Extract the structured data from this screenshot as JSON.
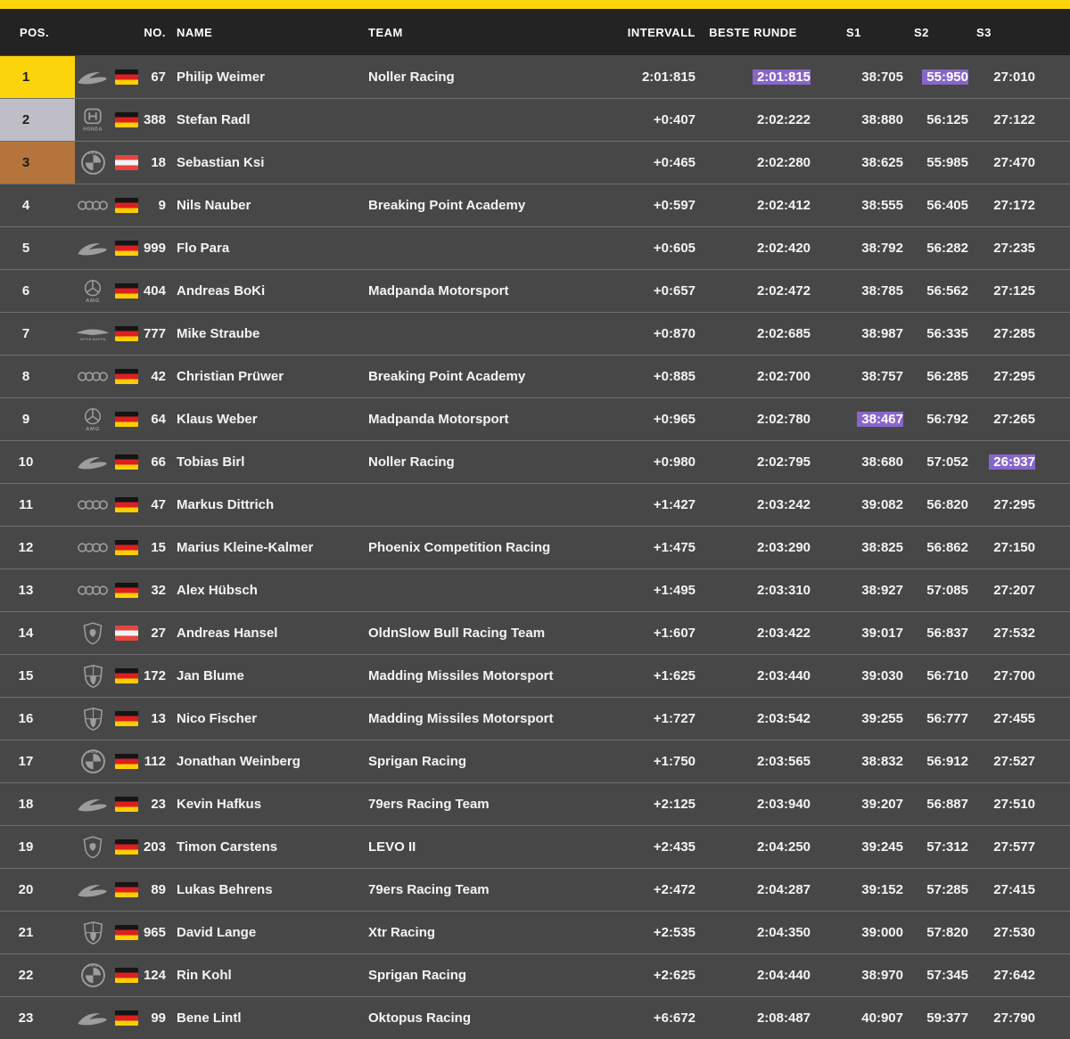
{
  "colors": {
    "accent": "#FBD40B",
    "gold": "#FBD40B",
    "silver": "#BFBEC6",
    "bronze": "#B5743B",
    "highlight": "#8766CB",
    "row_background": "#474747",
    "header_background": "#232323"
  },
  "header": {
    "pos": "POS.",
    "no": "NO.",
    "name": "NAME",
    "team": "TEAM",
    "intervall": "INTERVALL",
    "beste": "BESTE RUNDE",
    "s1": "S1",
    "s2": "S2",
    "s3": "S3"
  },
  "rows": [
    {
      "pos": "1",
      "medal": "gold",
      "logo": "mclaren",
      "flag": "de",
      "no": "67",
      "name": "Philip Weimer",
      "team": "Noller Racing",
      "intervall": "2:01:815",
      "beste": "2:01:815",
      "s1": "38:705",
      "s2": "55:950",
      "s3": "27:010",
      "hl": [
        "beste",
        "s2"
      ]
    },
    {
      "pos": "2",
      "medal": "silver",
      "logo": "honda",
      "flag": "de",
      "no": "388",
      "name": "Stefan Radl",
      "team": "",
      "intervall": "+0:407",
      "beste": "2:02:222",
      "s1": "38:880",
      "s2": "56:125",
      "s3": "27:122",
      "hl": []
    },
    {
      "pos": "3",
      "medal": "bronze",
      "logo": "bmw",
      "flag": "at",
      "no": "18",
      "name": "Sebastian Ksi",
      "team": "",
      "intervall": "+0:465",
      "beste": "2:02:280",
      "s1": "38:625",
      "s2": "55:985",
      "s3": "27:470",
      "hl": []
    },
    {
      "pos": "4",
      "medal": null,
      "logo": "audi",
      "flag": "de",
      "no": "9",
      "name": "Nils Nauber",
      "team": "Breaking Point Academy",
      "intervall": "+0:597",
      "beste": "2:02:412",
      "s1": "38:555",
      "s2": "56:405",
      "s3": "27:172",
      "hl": []
    },
    {
      "pos": "5",
      "medal": null,
      "logo": "mclaren",
      "flag": "de",
      "no": "999",
      "name": "Flo Para",
      "team": "",
      "intervall": "+0:605",
      "beste": "2:02:420",
      "s1": "38:792",
      "s2": "56:282",
      "s3": "27:235",
      "hl": []
    },
    {
      "pos": "6",
      "medal": null,
      "logo": "amg",
      "flag": "de",
      "no": "404",
      "name": "Andreas BoKi",
      "team": "Madpanda Motorsport",
      "intervall": "+0:657",
      "beste": "2:02:472",
      "s1": "38:785",
      "s2": "56:562",
      "s3": "27:125",
      "hl": []
    },
    {
      "pos": "7",
      "medal": null,
      "logo": "astonmartin",
      "flag": "de",
      "no": "777",
      "name": "Mike Straube",
      "team": "",
      "intervall": "+0:870",
      "beste": "2:02:685",
      "s1": "38:987",
      "s2": "56:335",
      "s3": "27:285",
      "hl": []
    },
    {
      "pos": "8",
      "medal": null,
      "logo": "audi",
      "flag": "de",
      "no": "42",
      "name": "Christian Prüwer",
      "team": "Breaking Point Academy",
      "intervall": "+0:885",
      "beste": "2:02:700",
      "s1": "38:757",
      "s2": "56:285",
      "s3": "27:295",
      "hl": []
    },
    {
      "pos": "9",
      "medal": null,
      "logo": "amg",
      "flag": "de",
      "no": "64",
      "name": "Klaus Weber",
      "team": "Madpanda Motorsport",
      "intervall": "+0:965",
      "beste": "2:02:780",
      "s1": "38:467",
      "s2": "56:792",
      "s3": "27:265",
      "hl": [
        "s1"
      ]
    },
    {
      "pos": "10",
      "medal": null,
      "logo": "mclaren",
      "flag": "de",
      "no": "66",
      "name": "Tobias Birl",
      "team": "Noller Racing",
      "intervall": "+0:980",
      "beste": "2:02:795",
      "s1": "38:680",
      "s2": "57:052",
      "s3": "26:937",
      "hl": [
        "s3"
      ]
    },
    {
      "pos": "11",
      "medal": null,
      "logo": "audi",
      "flag": "de",
      "no": "47",
      "name": "Markus Dittrich",
      "team": "",
      "intervall": "+1:427",
      "beste": "2:03:242",
      "s1": "39:082",
      "s2": "56:820",
      "s3": "27:295",
      "hl": []
    },
    {
      "pos": "12",
      "medal": null,
      "logo": "audi",
      "flag": "de",
      "no": "15",
      "name": "Marius Kleine-Kalmer",
      "team": "Phoenix Competition Racing",
      "intervall": "+1:475",
      "beste": "2:03:290",
      "s1": "38:825",
      "s2": "56:862",
      "s3": "27:150",
      "hl": []
    },
    {
      "pos": "13",
      "medal": null,
      "logo": "audi",
      "flag": "de",
      "no": "32",
      "name": "Alex Hübsch",
      "team": "",
      "intervall": "+1:495",
      "beste": "2:03:310",
      "s1": "38:927",
      "s2": "57:085",
      "s3": "27:207",
      "hl": []
    },
    {
      "pos": "14",
      "medal": null,
      "logo": "lamborghini",
      "flag": "at",
      "no": "27",
      "name": "Andreas Hansel",
      "team": "OldnSlow Bull Racing Team",
      "intervall": "+1:607",
      "beste": "2:03:422",
      "s1": "39:017",
      "s2": "56:837",
      "s3": "27:532",
      "hl": []
    },
    {
      "pos": "15",
      "medal": null,
      "logo": "porsche",
      "flag": "de",
      "no": "172",
      "name": "Jan Blume",
      "team": "Madding Missiles Motorsport",
      "intervall": "+1:625",
      "beste": "2:03:440",
      "s1": "39:030",
      "s2": "56:710",
      "s3": "27:700",
      "hl": []
    },
    {
      "pos": "16",
      "medal": null,
      "logo": "porsche",
      "flag": "de",
      "no": "13",
      "name": "Nico Fischer",
      "team": "Madding Missiles Motorsport",
      "intervall": "+1:727",
      "beste": "2:03:542",
      "s1": "39:255",
      "s2": "56:777",
      "s3": "27:455",
      "hl": []
    },
    {
      "pos": "17",
      "medal": null,
      "logo": "bmw",
      "flag": "de",
      "no": "112",
      "name": "Jonathan Weinberg",
      "team": "Sprigan Racing",
      "intervall": "+1:750",
      "beste": "2:03:565",
      "s1": "38:832",
      "s2": "56:912",
      "s3": "27:527",
      "hl": []
    },
    {
      "pos": "18",
      "medal": null,
      "logo": "mclaren",
      "flag": "de",
      "no": "23",
      "name": "Kevin Hafkus",
      "team": "79ers Racing Team",
      "intervall": "+2:125",
      "beste": "2:03:940",
      "s1": "39:207",
      "s2": "56:887",
      "s3": "27:510",
      "hl": []
    },
    {
      "pos": "19",
      "medal": null,
      "logo": "lamborghini",
      "flag": "de",
      "no": "203",
      "name": "Timon Carstens",
      "team": "LEVO II",
      "intervall": "+2:435",
      "beste": "2:04:250",
      "s1": "39:245",
      "s2": "57:312",
      "s3": "27:577",
      "hl": []
    },
    {
      "pos": "20",
      "medal": null,
      "logo": "mclaren",
      "flag": "de",
      "no": "89",
      "name": "Lukas Behrens",
      "team": "79ers Racing Team",
      "intervall": "+2:472",
      "beste": "2:04:287",
      "s1": "39:152",
      "s2": "57:285",
      "s3": "27:415",
      "hl": []
    },
    {
      "pos": "21",
      "medal": null,
      "logo": "porsche",
      "flag": "de",
      "no": "965",
      "name": "David Lange",
      "team": "Xtr Racing",
      "intervall": "+2:535",
      "beste": "2:04:350",
      "s1": "39:000",
      "s2": "57:820",
      "s3": "27:530",
      "hl": []
    },
    {
      "pos": "22",
      "medal": null,
      "logo": "bmw",
      "flag": "de",
      "no": "124",
      "name": "Rin Kohl",
      "team": "Sprigan Racing",
      "intervall": "+2:625",
      "beste": "2:04:440",
      "s1": "38:970",
      "s2": "57:345",
      "s3": "27:642",
      "hl": []
    },
    {
      "pos": "23",
      "medal": null,
      "logo": "mclaren",
      "flag": "de",
      "no": "99",
      "name": "Bene Lintl",
      "team": "Oktopus Racing",
      "intervall": "+6:672",
      "beste": "2:08:487",
      "s1": "40:907",
      "s2": "59:377",
      "s3": "27:790",
      "hl": []
    }
  ]
}
